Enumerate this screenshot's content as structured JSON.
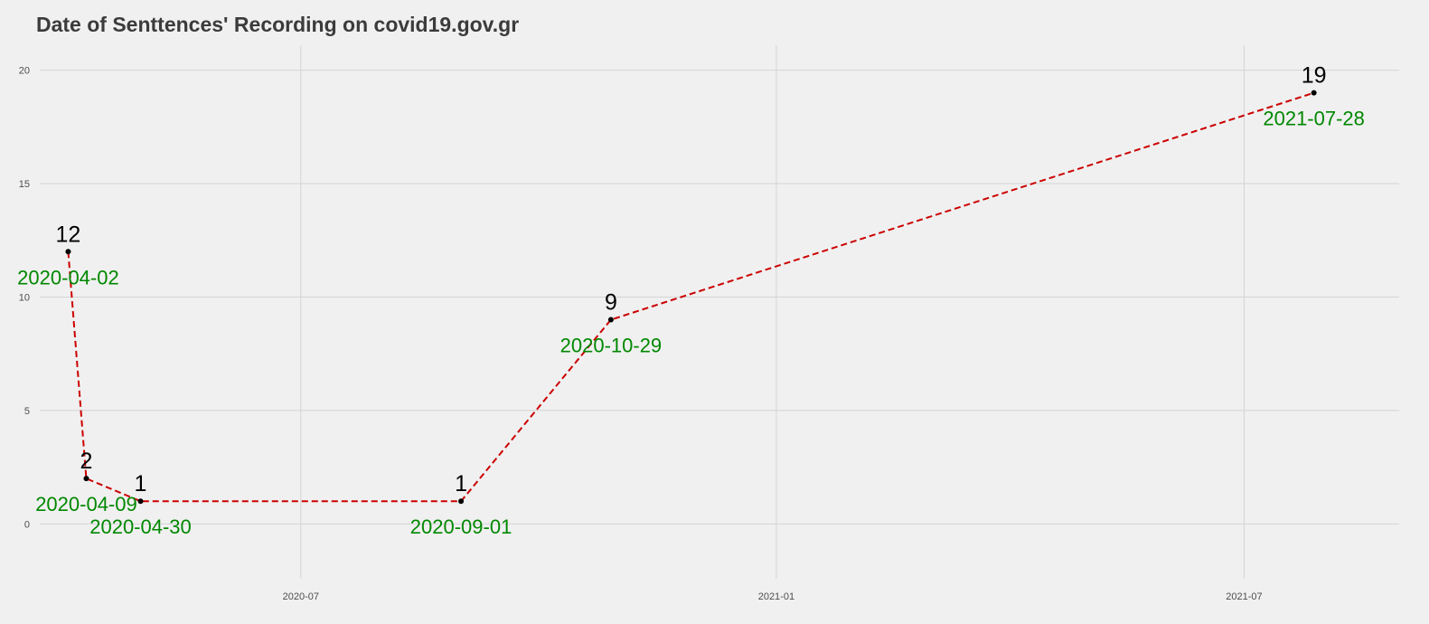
{
  "chart_data": {
    "type": "line",
    "title": "Date of Senttences' Recording on covid19.gov.gr",
    "xlabel": "",
    "ylabel": "",
    "x_axis_type": "date",
    "xlim": [
      "2020-03-22",
      "2021-08-30"
    ],
    "ylim": [
      -2.1,
      21.1
    ],
    "y_ticks": [
      0,
      5,
      10,
      15,
      20
    ],
    "x_ticks": [
      {
        "date": "2020-07-01",
        "label": "2020-07"
      },
      {
        "date": "2021-01-01",
        "label": "2021-01"
      },
      {
        "date": "2021-07-01",
        "label": "2021-07"
      }
    ],
    "grid": true,
    "legend": "none",
    "line_style": "dashed",
    "line_color": "#cc0000",
    "point_color": "#000000",
    "date_label_color": "#008800",
    "background": "#f0f0f0",
    "points": [
      {
        "x": "2020-04-02",
        "y": 12,
        "label": "12",
        "date_label": "2020-04-02"
      },
      {
        "x": "2020-04-09",
        "y": 2,
        "label": "2",
        "date_label": "2020-04-09"
      },
      {
        "x": "2020-04-30",
        "y": 1,
        "label": "1",
        "date_label": "2020-04-30"
      },
      {
        "x": "2020-09-01",
        "y": 1,
        "label": "1",
        "date_label": "2020-09-01"
      },
      {
        "x": "2020-10-29",
        "y": 9,
        "label": "9",
        "date_label": "2020-10-29"
      },
      {
        "x": "2021-07-28",
        "y": 19,
        "label": "19",
        "date_label": "2021-07-28"
      }
    ]
  }
}
